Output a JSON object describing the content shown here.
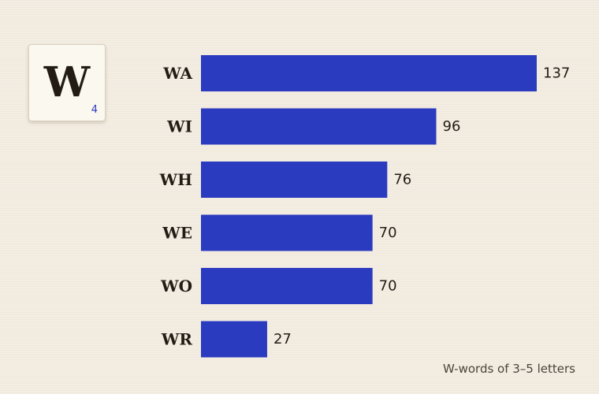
{
  "tile": {
    "letter": "W",
    "value": "4"
  },
  "caption": "W-words of 3–5 letters",
  "colors": {
    "bar": "#2b3bbf",
    "background": "#f4ede2",
    "text": "#231c14"
  },
  "chart_data": {
    "type": "bar",
    "orientation": "horizontal",
    "categories": [
      "WA",
      "WI",
      "WH",
      "WE",
      "WO",
      "WR"
    ],
    "values": [
      137,
      96,
      76,
      70,
      70,
      27
    ],
    "title": "",
    "xlabel": "",
    "ylabel": "",
    "xlim": [
      0,
      137
    ],
    "grid": false,
    "data_labels": true
  }
}
